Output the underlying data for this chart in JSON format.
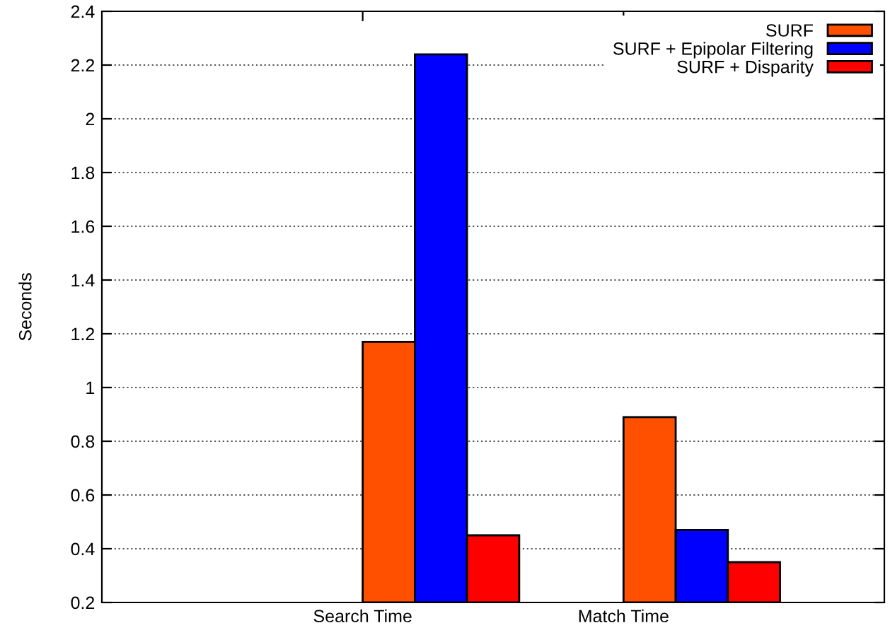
{
  "chart_data": {
    "type": "bar",
    "ylabel": "Seconds",
    "categories": [
      "Search Time",
      "Match Time"
    ],
    "series": [
      {
        "name": "SURF",
        "color": "#ff5000",
        "values": [
          1.17,
          0.89
        ]
      },
      {
        "name": "SURF + Epipolar Filtering",
        "color": "#0000ff",
        "values": [
          2.24,
          0.47
        ]
      },
      {
        "name": "SURF + Disparity",
        "color": "#ff0000",
        "values": [
          0.45,
          0.35
        ]
      }
    ],
    "ylim": [
      0.2,
      2.4
    ],
    "yticks": [
      0.2,
      0.4,
      0.6,
      0.8,
      1,
      1.2,
      1.4,
      1.6,
      1.8,
      2,
      2.2,
      2.4
    ],
    "grid": "y",
    "legend": "top right"
  }
}
